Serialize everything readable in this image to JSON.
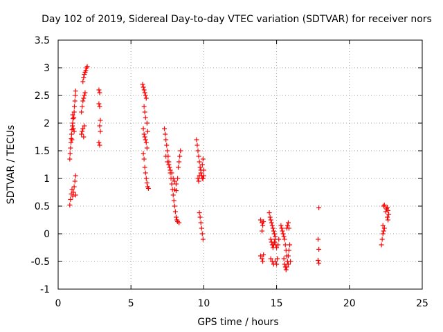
{
  "chart_data": {
    "type": "scatter",
    "title": "Day 102 of 2019, Sidereal Day-to-day VTEC variation (SDTVAR) for receiver nors",
    "xlabel": "GPS time / hours",
    "ylabel": "SDTVAR / TECUs",
    "xlim": [
      0,
      25
    ],
    "ylim": [
      -1,
      3.5
    ],
    "xticks": [
      0,
      5,
      10,
      15,
      20,
      25
    ],
    "xtick_labels": [
      "0",
      "5",
      "10",
      "15",
      "20",
      "25"
    ],
    "yticks": [
      -1,
      -0.5,
      0,
      0.5,
      1,
      1.5,
      2,
      2.5,
      3,
      3.5
    ],
    "ytick_labels": [
      "-1",
      "-0.5",
      "0",
      "0.5",
      "1",
      "1.5",
      "2",
      "2.5",
      "3",
      "3.5"
    ],
    "grid": true,
    "marker": "+",
    "color": "#ff0000",
    "series": [
      {
        "name": "SDTVAR",
        "points": [
          [
            0.8,
            0.52
          ],
          [
            0.85,
            0.62
          ],
          [
            0.9,
            0.72
          ],
          [
            0.95,
            0.8
          ],
          [
            1.0,
            0.68
          ],
          [
            1.05,
            0.75
          ],
          [
            1.1,
            0.85
          ],
          [
            1.15,
            0.95
          ],
          [
            1.2,
            1.05
          ],
          [
            1.2,
            0.7
          ],
          [
            0.8,
            1.35
          ],
          [
            0.82,
            1.45
          ],
          [
            0.85,
            1.55
          ],
          [
            0.88,
            1.65
          ],
          [
            0.9,
            1.72
          ],
          [
            0.92,
            1.8
          ],
          [
            0.95,
            1.88
          ],
          [
            0.98,
            1.95
          ],
          [
            1.0,
            2.0
          ],
          [
            1.02,
            2.08
          ],
          [
            1.05,
            1.9
          ],
          [
            1.08,
            2.1
          ],
          [
            1.1,
            2.2
          ],
          [
            1.12,
            2.3
          ],
          [
            1.15,
            2.4
          ],
          [
            1.18,
            2.5
          ],
          [
            1.2,
            2.58
          ],
          [
            1.0,
            2.15
          ],
          [
            0.95,
            1.7
          ],
          [
            1.1,
            1.85
          ],
          [
            1.6,
            2.2
          ],
          [
            1.65,
            2.3
          ],
          [
            1.7,
            2.4
          ],
          [
            1.75,
            2.45
          ],
          [
            1.8,
            2.5
          ],
          [
            1.85,
            2.55
          ],
          [
            1.7,
            2.75
          ],
          [
            1.75,
            2.82
          ],
          [
            1.8,
            2.88
          ],
          [
            1.85,
            2.92
          ],
          [
            1.9,
            2.95
          ],
          [
            1.95,
            3.0
          ],
          [
            2.0,
            3.02
          ],
          [
            1.6,
            1.8
          ],
          [
            1.65,
            1.85
          ],
          [
            1.7,
            1.9
          ],
          [
            1.8,
            1.95
          ],
          [
            1.75,
            1.75
          ],
          [
            2.8,
            2.6
          ],
          [
            2.85,
            2.55
          ],
          [
            2.8,
            2.35
          ],
          [
            2.85,
            2.3
          ],
          [
            2.9,
            2.05
          ],
          [
            2.85,
            1.95
          ],
          [
            2.9,
            1.85
          ],
          [
            2.8,
            1.65
          ],
          [
            2.85,
            1.6
          ],
          [
            5.8,
            2.7
          ],
          [
            5.85,
            2.65
          ],
          [
            5.9,
            2.6
          ],
          [
            5.95,
            2.55
          ],
          [
            6.0,
            2.5
          ],
          [
            6.05,
            2.45
          ],
          [
            5.9,
            2.3
          ],
          [
            5.95,
            2.2
          ],
          [
            6.0,
            2.1
          ],
          [
            5.85,
            1.9
          ],
          [
            5.9,
            1.8
          ],
          [
            5.95,
            1.75
          ],
          [
            6.0,
            1.7
          ],
          [
            6.05,
            1.65
          ],
          [
            6.1,
            1.55
          ],
          [
            5.85,
            1.45
          ],
          [
            5.9,
            1.35
          ],
          [
            5.95,
            1.2
          ],
          [
            6.0,
            1.1
          ],
          [
            6.05,
            1.0
          ],
          [
            6.1,
            0.92
          ],
          [
            6.15,
            0.85
          ],
          [
            6.2,
            0.82
          ],
          [
            6.1,
            2.0
          ],
          [
            6.15,
            1.85
          ],
          [
            7.3,
            1.9
          ],
          [
            7.35,
            1.8
          ],
          [
            7.4,
            1.7
          ],
          [
            7.45,
            1.6
          ],
          [
            7.5,
            1.5
          ],
          [
            7.55,
            1.4
          ],
          [
            7.6,
            1.3
          ],
          [
            7.65,
            1.2
          ],
          [
            7.7,
            1.1
          ],
          [
            7.75,
            1.0
          ],
          [
            7.8,
            0.9
          ],
          [
            7.85,
            0.8
          ],
          [
            7.9,
            0.7
          ],
          [
            7.95,
            0.6
          ],
          [
            8.0,
            0.5
          ],
          [
            8.05,
            0.4
          ],
          [
            8.1,
            0.3
          ],
          [
            8.15,
            0.25
          ],
          [
            8.2,
            0.22
          ],
          [
            8.3,
            0.2
          ],
          [
            7.4,
            1.4
          ],
          [
            7.5,
            1.3
          ],
          [
            7.6,
            1.25
          ],
          [
            7.7,
            1.15
          ],
          [
            7.8,
            1.1
          ],
          [
            7.9,
            1.0
          ],
          [
            8.0,
            0.95
          ],
          [
            8.1,
            0.9
          ],
          [
            8.2,
            1.0
          ],
          [
            8.25,
            1.2
          ],
          [
            8.3,
            1.3
          ],
          [
            8.35,
            1.4
          ],
          [
            8.4,
            1.5
          ],
          [
            8.0,
            0.8
          ],
          [
            8.1,
            0.78
          ],
          [
            9.5,
            1.7
          ],
          [
            9.55,
            1.6
          ],
          [
            9.6,
            1.5
          ],
          [
            9.65,
            1.4
          ],
          [
            9.7,
            1.3
          ],
          [
            9.75,
            1.2
          ],
          [
            9.8,
            1.1
          ],
          [
            9.85,
            1.05
          ],
          [
            9.9,
            1.0
          ],
          [
            9.95,
            1.0
          ],
          [
            9.6,
            1.0
          ],
          [
            9.65,
            0.95
          ],
          [
            9.7,
            1.05
          ],
          [
            9.8,
            1.15
          ],
          [
            9.9,
            1.25
          ],
          [
            9.95,
            1.35
          ],
          [
            10.0,
            1.15
          ],
          [
            10.0,
            1.05
          ],
          [
            9.7,
            0.38
          ],
          [
            9.75,
            0.3
          ],
          [
            9.8,
            0.2
          ],
          [
            9.85,
            0.1
          ],
          [
            9.9,
            0.0
          ],
          [
            9.95,
            -0.1
          ],
          [
            13.9,
            0.25
          ],
          [
            14.0,
            0.2
          ],
          [
            14.05,
            0.15
          ],
          [
            14.1,
            0.22
          ],
          [
            14.0,
            0.05
          ],
          [
            13.9,
            -0.4
          ],
          [
            14.0,
            -0.45
          ],
          [
            14.05,
            -0.5
          ],
          [
            14.1,
            -0.38
          ],
          [
            14.5,
            0.38
          ],
          [
            14.55,
            0.3
          ],
          [
            14.6,
            0.25
          ],
          [
            14.65,
            0.2
          ],
          [
            14.7,
            0.15
          ],
          [
            14.75,
            0.1
          ],
          [
            14.8,
            0.05
          ],
          [
            14.85,
            0.0
          ],
          [
            14.9,
            -0.05
          ],
          [
            14.6,
            -0.1
          ],
          [
            14.65,
            -0.15
          ],
          [
            14.7,
            -0.2
          ],
          [
            14.75,
            -0.25
          ],
          [
            14.8,
            -0.2
          ],
          [
            14.85,
            -0.15
          ],
          [
            14.9,
            -0.1
          ],
          [
            14.95,
            -0.2
          ],
          [
            15.0,
            -0.25
          ],
          [
            14.6,
            -0.45
          ],
          [
            14.7,
            -0.5
          ],
          [
            14.8,
            -0.55
          ],
          [
            14.9,
            -0.5
          ],
          [
            15.0,
            -0.55
          ],
          [
            15.05,
            -0.45
          ],
          [
            15.1,
            -0.2
          ],
          [
            15.15,
            -0.1
          ],
          [
            15.3,
            0.15
          ],
          [
            15.35,
            0.1
          ],
          [
            15.4,
            0.05
          ],
          [
            15.45,
            0.0
          ],
          [
            15.5,
            -0.05
          ],
          [
            15.55,
            -0.1
          ],
          [
            15.6,
            -0.2
          ],
          [
            15.65,
            -0.3
          ],
          [
            15.7,
            -0.4
          ],
          [
            15.5,
            -0.45
          ],
          [
            15.55,
            -0.55
          ],
          [
            15.6,
            -0.6
          ],
          [
            15.65,
            -0.65
          ],
          [
            15.7,
            -0.6
          ],
          [
            15.75,
            -0.5
          ],
          [
            15.8,
            -0.4
          ],
          [
            15.85,
            -0.3
          ],
          [
            15.7,
            0.1
          ],
          [
            15.75,
            0.15
          ],
          [
            15.8,
            0.2
          ],
          [
            15.85,
            0.1
          ],
          [
            15.9,
            -0.2
          ],
          [
            15.95,
            -0.5
          ],
          [
            15.8,
            -0.55
          ],
          [
            17.9,
            0.47
          ],
          [
            17.85,
            -0.1
          ],
          [
            17.9,
            -0.28
          ],
          [
            17.85,
            -0.48
          ],
          [
            17.9,
            -0.53
          ],
          [
            22.2,
            -0.2
          ],
          [
            22.25,
            -0.1
          ],
          [
            22.3,
            0.0
          ],
          [
            22.35,
            0.05
          ],
          [
            22.4,
            0.1
          ],
          [
            22.3,
            0.15
          ],
          [
            22.35,
            0.5
          ],
          [
            22.4,
            0.52
          ],
          [
            22.5,
            0.4
          ],
          [
            22.55,
            0.45
          ],
          [
            22.6,
            0.48
          ],
          [
            22.65,
            0.42
          ],
          [
            22.7,
            0.35
          ],
          [
            22.6,
            0.3
          ],
          [
            22.65,
            0.25
          ],
          [
            22.55,
            0.45
          ]
        ]
      }
    ]
  }
}
